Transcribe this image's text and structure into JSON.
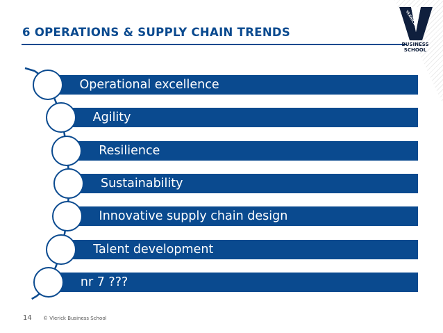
{
  "slide": {
    "title": "6 OPERATIONS & SUPPLY CHAIN TRENDS",
    "logo_text": "BUSINESS SCHOOL",
    "logo_vertical_text": "VLERICK",
    "page_number": "14",
    "footer": "© Vlerick Business School"
  },
  "list_items": [
    "Operational excellence",
    "Agility",
    "Resilience",
    "Sustainability",
    "Innovative supply chain design",
    "Talent development",
    "nr 7 ???"
  ],
  "colors": {
    "primary_blue": "#0a4a8f",
    "text_white": "#ffffff",
    "footer_gray": "#555555"
  }
}
